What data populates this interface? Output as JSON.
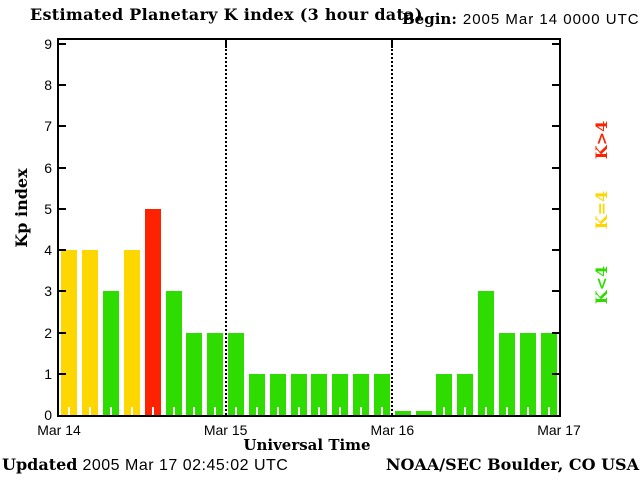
{
  "title": "Estimated Planetary K index (3 hour data)",
  "begin": {
    "label": "Begin:",
    "value": "2005 Mar 14 0000 UTC"
  },
  "axes": {
    "ylabel": "Kp index",
    "xlabel": "Universal Time",
    "yticks": [
      "0",
      "1",
      "2",
      "3",
      "4",
      "5",
      "6",
      "7",
      "8",
      "9"
    ],
    "day_labels": [
      "Mar 14",
      "Mar 15",
      "Mar 16",
      "Mar 17"
    ]
  },
  "legend": {
    "items": [
      {
        "label": "K>4",
        "color": "#FF2200",
        "rule": "gt4"
      },
      {
        "label": "K=4",
        "color": "#FFD700",
        "rule": "eq4"
      },
      {
        "label": "K<4",
        "color": "#2EDC00",
        "rule": "lt4"
      }
    ]
  },
  "footer": {
    "updated_label": "Updated",
    "updated_value": "2005 Mar 17 02:45:02 UTC",
    "source": "NOAA/SEC Boulder, CO USA"
  },
  "chart_data": {
    "type": "bar",
    "title": "Estimated Planetary K index (3 hour data)",
    "begin": "2005 Mar 14 0000 UTC",
    "xlabel": "Universal Time",
    "ylabel": "Kp index",
    "ylim": [
      0,
      9
    ],
    "interval_hours": 3,
    "bars_per_day": 8,
    "day_labels": [
      "Mar 14",
      "Mar 15",
      "Mar 16",
      "Mar 17"
    ],
    "values": [
      4,
      4,
      3,
      4,
      5,
      3,
      2,
      2,
      2,
      1,
      1,
      1,
      1,
      1,
      1,
      1,
      0,
      0,
      1,
      1,
      3,
      2,
      2,
      2
    ],
    "color_rules": {
      "lt4": "#2EDC00",
      "eq4": "#FFD700",
      "gt4": "#FF2200"
    },
    "grid": "dotted vertical lines at day boundaries",
    "legend_position": "right"
  }
}
